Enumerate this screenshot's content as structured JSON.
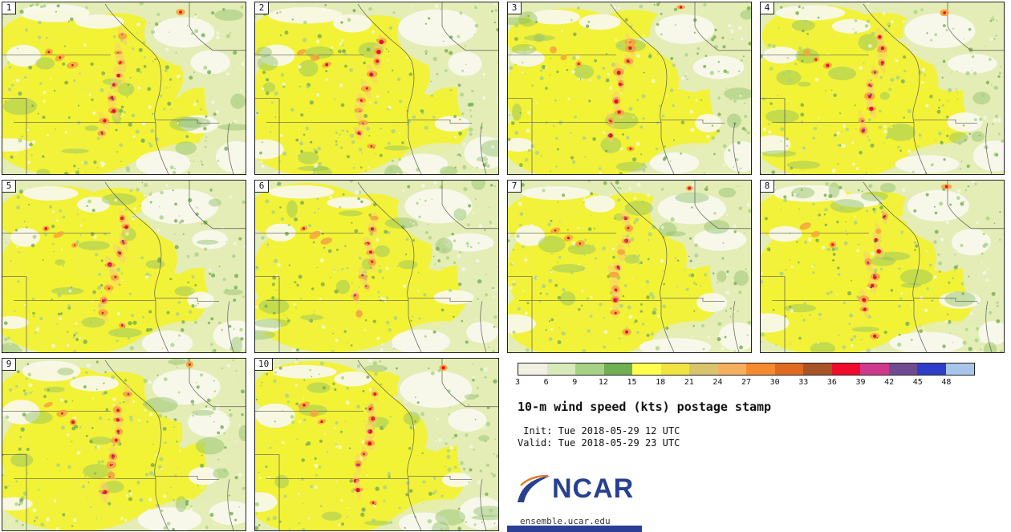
{
  "panels": [
    {
      "label": "1"
    },
    {
      "label": "2"
    },
    {
      "label": "3"
    },
    {
      "label": "4"
    },
    {
      "label": "5"
    },
    {
      "label": "6"
    },
    {
      "label": "7"
    },
    {
      "label": "8"
    },
    {
      "label": "9"
    },
    {
      "label": "10"
    }
  ],
  "legend": {
    "ticks": [
      "3",
      "6",
      "9",
      "12",
      "15",
      "18",
      "21",
      "24",
      "27",
      "30",
      "33",
      "36",
      "39",
      "42",
      "45",
      "48"
    ],
    "colors": [
      "#f1f1e3",
      "#d8eab9",
      "#a5d284",
      "#6fb052",
      "#ffff4d",
      "#f0e442",
      "#d9c46e",
      "#f5af5f",
      "#f58a2e",
      "#e06a20",
      "#a85428",
      "#ef0a2e",
      "#cf3a8e",
      "#6f4b92",
      "#2f3dcb",
      "#a9c6ea"
    ]
  },
  "info": {
    "title": "10-m wind speed (kts) postage stamp",
    "init_line": " Init: Tue 2018-05-29 12 UTC",
    "valid_line": "Valid: Tue 2018-05-29 23 UTC",
    "logo_text": "NCAR",
    "site": "ensemble.ucar.edu",
    "ncar_blue": "#27418f",
    "swoosh_orange": "#e87722",
    "footer_blue": "#2b3f97"
  },
  "map_palette": {
    "base": "#e4edb6",
    "yellow": "#f2f235",
    "white": "#f8f9ef",
    "speckle_light": "#a9d284",
    "speckle_dark": "#74ad52",
    "patch_green": "#8cbf66",
    "orange_halo": "#f5a43c",
    "orange_streak": "#f8d06e",
    "red": "#e8112d",
    "magenta": "#c93a8e",
    "purple": "#6c4a91",
    "border": "#5a5a5a"
  }
}
